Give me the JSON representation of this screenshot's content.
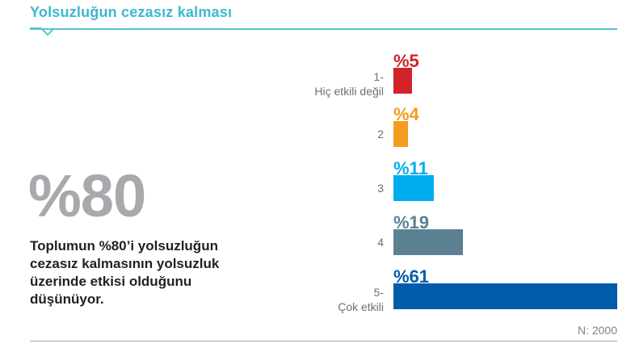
{
  "header": {
    "title": "Yolsuzluğun cezasız kalması"
  },
  "highlight": {
    "value": "%80",
    "description": "Toplumun %80’i yolsuzluğun cezasız kalmasının yolsuzluk üzerinde etkisi olduğunu düşünüyor."
  },
  "chart_data": {
    "type": "bar",
    "orientation": "horizontal",
    "title": "Yolsuzluğun cezasız kalması",
    "categories": [
      [
        "1-",
        "Hiç etkili değil"
      ],
      [
        "2"
      ],
      [
        "3"
      ],
      [
        "4"
      ],
      [
        "5-",
        "Çok etkili"
      ]
    ],
    "values": [
      5,
      4,
      11,
      19,
      61
    ],
    "labels": [
      "%5",
      "%4",
      "%11",
      "%19",
      "%61"
    ],
    "colors": [
      "#d2232a",
      "#f39c1e",
      "#00aeef",
      "#5b8193",
      "#005baa"
    ],
    "unit": "%",
    "xlim": [
      0,
      61
    ],
    "grid": false,
    "note": "N: 2000"
  }
}
